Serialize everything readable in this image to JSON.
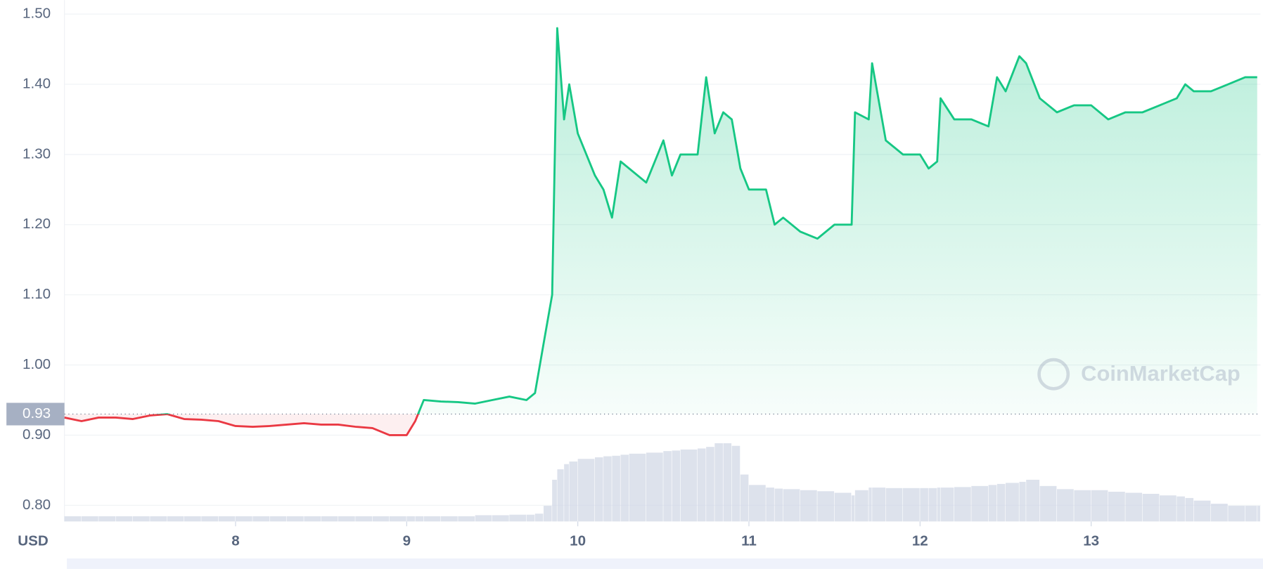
{
  "chart_data": {
    "type": "line",
    "y_label": "USD",
    "watermark": "CoinMarketCap",
    "x": [
      7.0,
      7.1,
      7.2,
      7.3,
      7.4,
      7.5,
      7.6,
      7.7,
      7.8,
      7.9,
      8.0,
      8.1,
      8.2,
      8.3,
      8.4,
      8.5,
      8.6,
      8.7,
      8.8,
      8.9,
      9.0,
      9.05,
      9.1,
      9.2,
      9.3,
      9.4,
      9.5,
      9.6,
      9.7,
      9.75,
      9.8,
      9.85,
      9.88,
      9.92,
      9.95,
      10.0,
      10.1,
      10.15,
      10.2,
      10.25,
      10.3,
      10.4,
      10.5,
      10.55,
      10.6,
      10.7,
      10.75,
      10.8,
      10.85,
      10.9,
      10.95,
      11.0,
      11.1,
      11.15,
      11.2,
      11.3,
      11.4,
      11.5,
      11.6,
      11.62,
      11.7,
      11.72,
      11.8,
      11.9,
      12.0,
      12.05,
      12.1,
      12.12,
      12.2,
      12.3,
      12.4,
      12.45,
      12.5,
      12.58,
      12.62,
      12.7,
      12.8,
      12.9,
      13.0,
      13.1,
      13.2,
      13.3,
      13.4,
      13.5,
      13.55,
      13.6,
      13.7,
      13.8,
      13.9,
      13.97
    ],
    "series": [
      {
        "name": "Price",
        "values": [
          0.925,
          0.92,
          0.925,
          0.925,
          0.923,
          0.928,
          0.93,
          0.923,
          0.922,
          0.92,
          0.913,
          0.912,
          0.913,
          0.915,
          0.917,
          0.915,
          0.915,
          0.912,
          0.91,
          0.9,
          0.9,
          0.92,
          0.95,
          0.948,
          0.947,
          0.945,
          0.95,
          0.955,
          0.95,
          0.96,
          1.03,
          1.1,
          1.48,
          1.35,
          1.4,
          1.33,
          1.27,
          1.25,
          1.21,
          1.29,
          1.28,
          1.26,
          1.32,
          1.27,
          1.3,
          1.3,
          1.41,
          1.33,
          1.36,
          1.35,
          1.28,
          1.25,
          1.25,
          1.2,
          1.21,
          1.19,
          1.18,
          1.2,
          1.2,
          1.36,
          1.35,
          1.43,
          1.32,
          1.3,
          1.3,
          1.28,
          1.29,
          1.38,
          1.35,
          1.35,
          1.34,
          1.41,
          1.39,
          1.44,
          1.43,
          1.38,
          1.36,
          1.37,
          1.37,
          1.35,
          1.36,
          1.36,
          1.37,
          1.38,
          1.4,
          1.39,
          1.39,
          1.4,
          1.41,
          1.41
        ]
      },
      {
        "name": "Volume",
        "axis": "y2",
        "color": "#cfd6e4",
        "values": [
          1,
          1,
          1,
          1,
          1,
          1,
          1,
          1,
          1,
          1,
          1,
          1,
          1,
          1,
          1,
          1,
          1,
          1,
          1,
          1,
          1,
          1,
          1,
          1,
          1,
          1.2,
          1.2,
          1.3,
          1.3,
          1.5,
          3,
          8,
          10,
          11,
          11.5,
          12,
          12.3,
          12.5,
          12.6,
          12.8,
          13,
          13.2,
          13.5,
          13.6,
          13.8,
          14,
          14.3,
          15,
          15,
          14.5,
          9,
          7,
          6.5,
          6.3,
          6.2,
          6,
          5.8,
          5.5,
          5,
          6,
          6.5,
          6.5,
          6.4,
          6.4,
          6.4,
          6.4,
          6.5,
          6.5,
          6.6,
          6.8,
          7,
          7.2,
          7.4,
          7.6,
          8,
          6.8,
          6.2,
          6,
          6,
          5.7,
          5.5,
          5.3,
          5,
          4.8,
          4.5,
          4,
          3.4,
          3,
          3,
          3
        ]
      }
    ],
    "up_color": "#16c784",
    "down_color": "#ea3943",
    "baseline": {
      "value": 0.93,
      "label": "0.93"
    },
    "xlim": [
      7,
      13.99
    ],
    "xticks": [
      8,
      9,
      10,
      11,
      12,
      13
    ],
    "ylim": [
      0.777,
      1.52
    ],
    "yticks": [
      {
        "value": 0.8,
        "label": "0.80"
      },
      {
        "value": 0.9,
        "label": "0.90"
      },
      {
        "value": 1.0,
        "label": "1.00"
      },
      {
        "value": 1.1,
        "label": "1.10"
      },
      {
        "value": 1.2,
        "label": "1.20"
      },
      {
        "value": 1.3,
        "label": "1.30"
      },
      {
        "value": 1.4,
        "label": "1.40"
      },
      {
        "value": 1.5,
        "label": "1.50"
      }
    ],
    "y2lim": [
      0,
      100
    ],
    "grid": true
  }
}
